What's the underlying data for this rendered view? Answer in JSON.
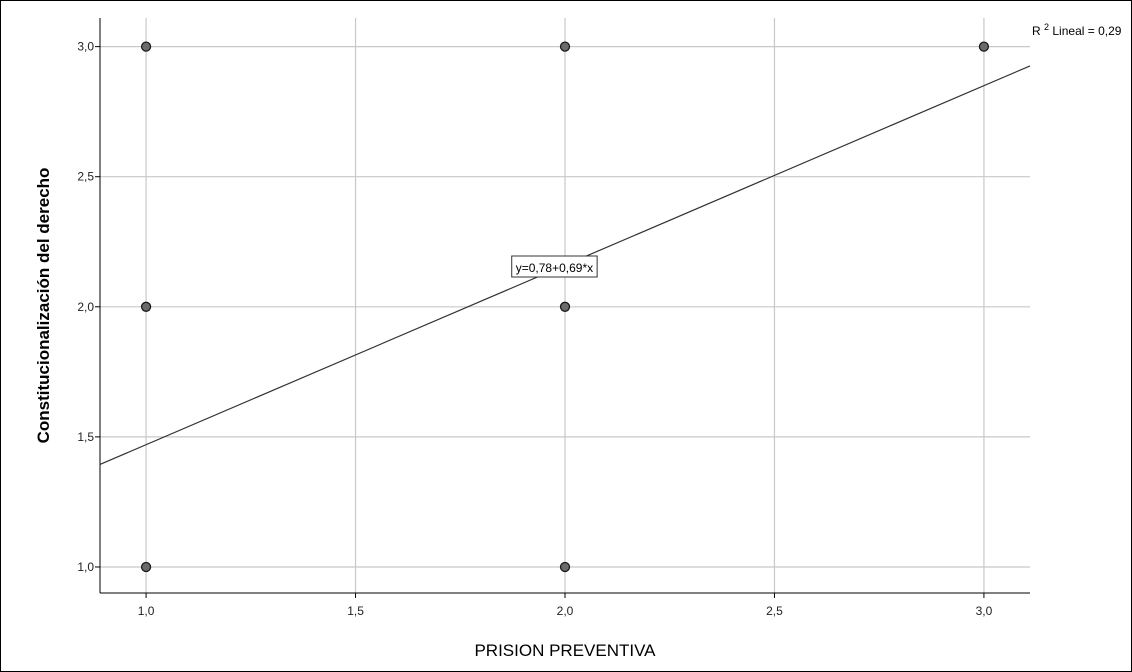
{
  "chart_data": {
    "type": "scatter",
    "title": "",
    "xlabel": "PRISION PREVENTIVA",
    "ylabel": "Constitucionalización del derecho",
    "xlim": [
      0.89,
      3.11
    ],
    "ylim": [
      0.9,
      3.11
    ],
    "xticks": [
      1.0,
      1.5,
      2.0,
      2.5,
      3.0
    ],
    "xtick_labels": [
      "1,0",
      "1,5",
      "2,0",
      "2,5",
      "3,0"
    ],
    "yticks": [
      1.0,
      1.5,
      2.0,
      2.5,
      3.0
    ],
    "ytick_labels": [
      "1,0",
      "1,5",
      "2,0",
      "2,5",
      "3,0"
    ],
    "grid": true,
    "points": [
      {
        "x": 1,
        "y": 3
      },
      {
        "x": 1,
        "y": 2
      },
      {
        "x": 1,
        "y": 1
      },
      {
        "x": 2,
        "y": 3
      },
      {
        "x": 2,
        "y": 2
      },
      {
        "x": 2,
        "y": 1
      },
      {
        "x": 3,
        "y": 3
      }
    ],
    "fit_line": {
      "intercept": 0.78,
      "slope": 0.69
    },
    "fit_label": "y=0,78+0,69*x",
    "r2_label": {
      "prefix": "R",
      "superscript": "2",
      "text": " Lineal = 0,29"
    },
    "colors": {
      "marker_fill": "#6b6b6b",
      "marker_stroke": "#1a1a1a",
      "grid": "#c8c8c8",
      "fit_line": "#333333"
    }
  }
}
